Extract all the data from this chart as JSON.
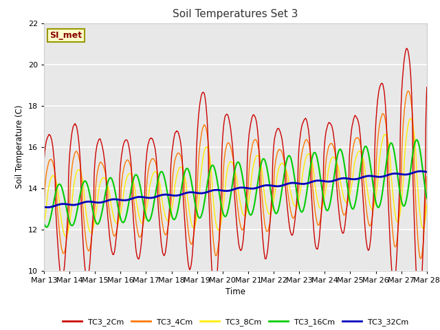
{
  "title": "Soil Temperatures Set 3",
  "xlabel": "Time",
  "ylabel": "Soil Temperature (C)",
  "ylim": [
    10,
    22
  ],
  "xlim": [
    0,
    15
  ],
  "x_tick_labels": [
    "Mar 13",
    "Mar 14",
    "Mar 15",
    "Mar 16",
    "Mar 17",
    "Mar 18",
    "Mar 19",
    "Mar 20",
    "Mar 21",
    "Mar 22",
    "Mar 23",
    "Mar 24",
    "Mar 25",
    "Mar 26",
    "Mar 27",
    "Mar 28"
  ],
  "bg_color": "#e8e8e8",
  "fig_bg": "#ffffff",
  "series_colors": {
    "TC3_2Cm": "#cc0000",
    "TC3_4Cm": "#ff7700",
    "TC3_8Cm": "#ffee00",
    "TC3_16Cm": "#00cc00",
    "TC3_32Cm": "#0000bb"
  },
  "annotation_text": "SI_met",
  "annotation_bg": "#ffffcc",
  "annotation_border": "#999900"
}
